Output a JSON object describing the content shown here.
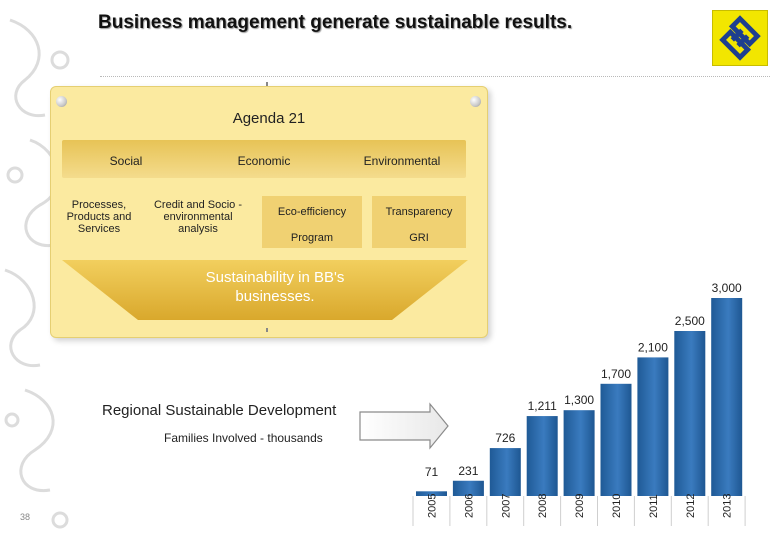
{
  "header": {
    "title": "Business management generate sustainable results.",
    "page_number": "38"
  },
  "colors": {
    "accent_yellow": "#f2e600",
    "panel_yellow": "#fbeaa0",
    "band_gold": "#e7c356",
    "bar_blue": "#2f6ba7"
  },
  "logo": {
    "icon": "bb-logo-icon"
  },
  "agenda": {
    "title": "Agenda 21",
    "pillars": [
      "Social",
      "Economic",
      "Environmental"
    ],
    "items": {
      "processes": "Processes, Products and Services",
      "credit": "Credit and Socio -environmental analysis",
      "eco_efficiency": "Eco-efficiency",
      "program": "Program",
      "transparency": "Transparency",
      "gri": "GRI"
    },
    "funnel_text": "Sustainability in BB's businesses."
  },
  "annotations": {
    "regional": "Regional Sustainable Development",
    "families": "Families Involved - thousands"
  },
  "chart_data": {
    "type": "bar",
    "categories": [
      "2005",
      "2006",
      "2007",
      "2008",
      "2009",
      "2010",
      "2011",
      "2012",
      "2013"
    ],
    "values": [
      71,
      231,
      726,
      1211,
      1300,
      1700,
      2100,
      2500,
      3000
    ],
    "value_labels": [
      "71",
      "231",
      "726",
      "1,211",
      "1,300",
      "1,700",
      "2,100",
      "2,500",
      "3,000"
    ],
    "ylabel": "Families Involved - thousands",
    "ylim": [
      0,
      3000
    ],
    "grid": false,
    "legend": "none"
  }
}
